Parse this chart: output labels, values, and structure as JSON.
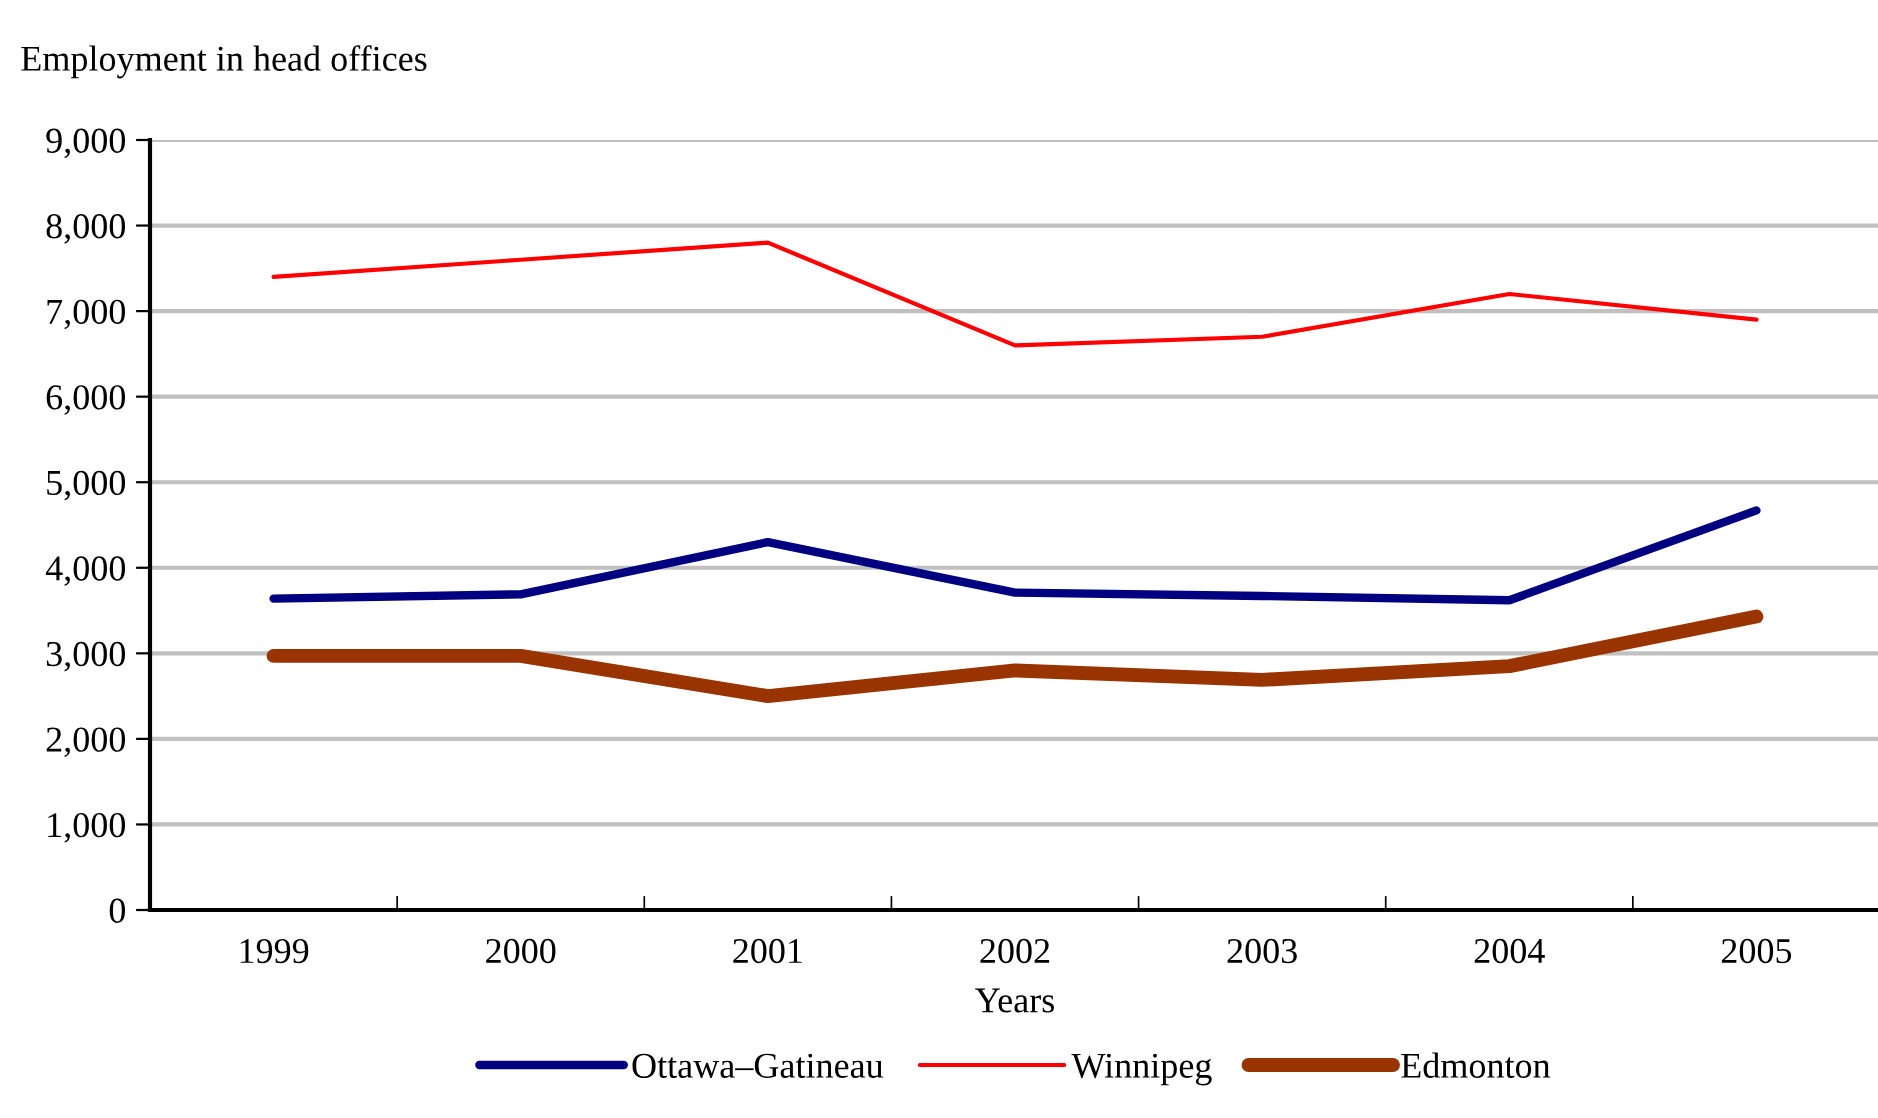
{
  "chart_data": {
    "type": "line",
    "ylabel": "Employment in head offices",
    "xlabel": "Years",
    "categories": [
      "1999",
      "2000",
      "2001",
      "2002",
      "2003",
      "2004",
      "2005"
    ],
    "series": [
      {
        "name": "Ottawa–Gatineau",
        "color": "#000080",
        "values": [
          3640,
          3690,
          4300,
          3710,
          3670,
          3620,
          4670
        ]
      },
      {
        "name": "Winnipeg",
        "color": "#ff0000",
        "values": [
          7400,
          7600,
          7800,
          6600,
          6700,
          7200,
          6900
        ]
      },
      {
        "name": "Edmonton",
        "color": "#993300",
        "values": [
          2970,
          2970,
          2500,
          2800,
          2690,
          2850,
          3430
        ]
      }
    ],
    "ylim": [
      0,
      9000
    ],
    "yticks": [
      {
        "value": 0,
        "label": "0"
      },
      {
        "value": 1000,
        "label": "1,000"
      },
      {
        "value": 2000,
        "label": "2,000"
      },
      {
        "value": 3000,
        "label": "3,000"
      },
      {
        "value": 4000,
        "label": "4,000"
      },
      {
        "value": 5000,
        "label": "5,000"
      },
      {
        "value": 6000,
        "label": "6,000"
      },
      {
        "value": 7000,
        "label": "7,000"
      },
      {
        "value": 8000,
        "label": "8,000"
      },
      {
        "value": 9000,
        "label": "9,000"
      }
    ],
    "grid": "y",
    "legend": "bottom"
  }
}
